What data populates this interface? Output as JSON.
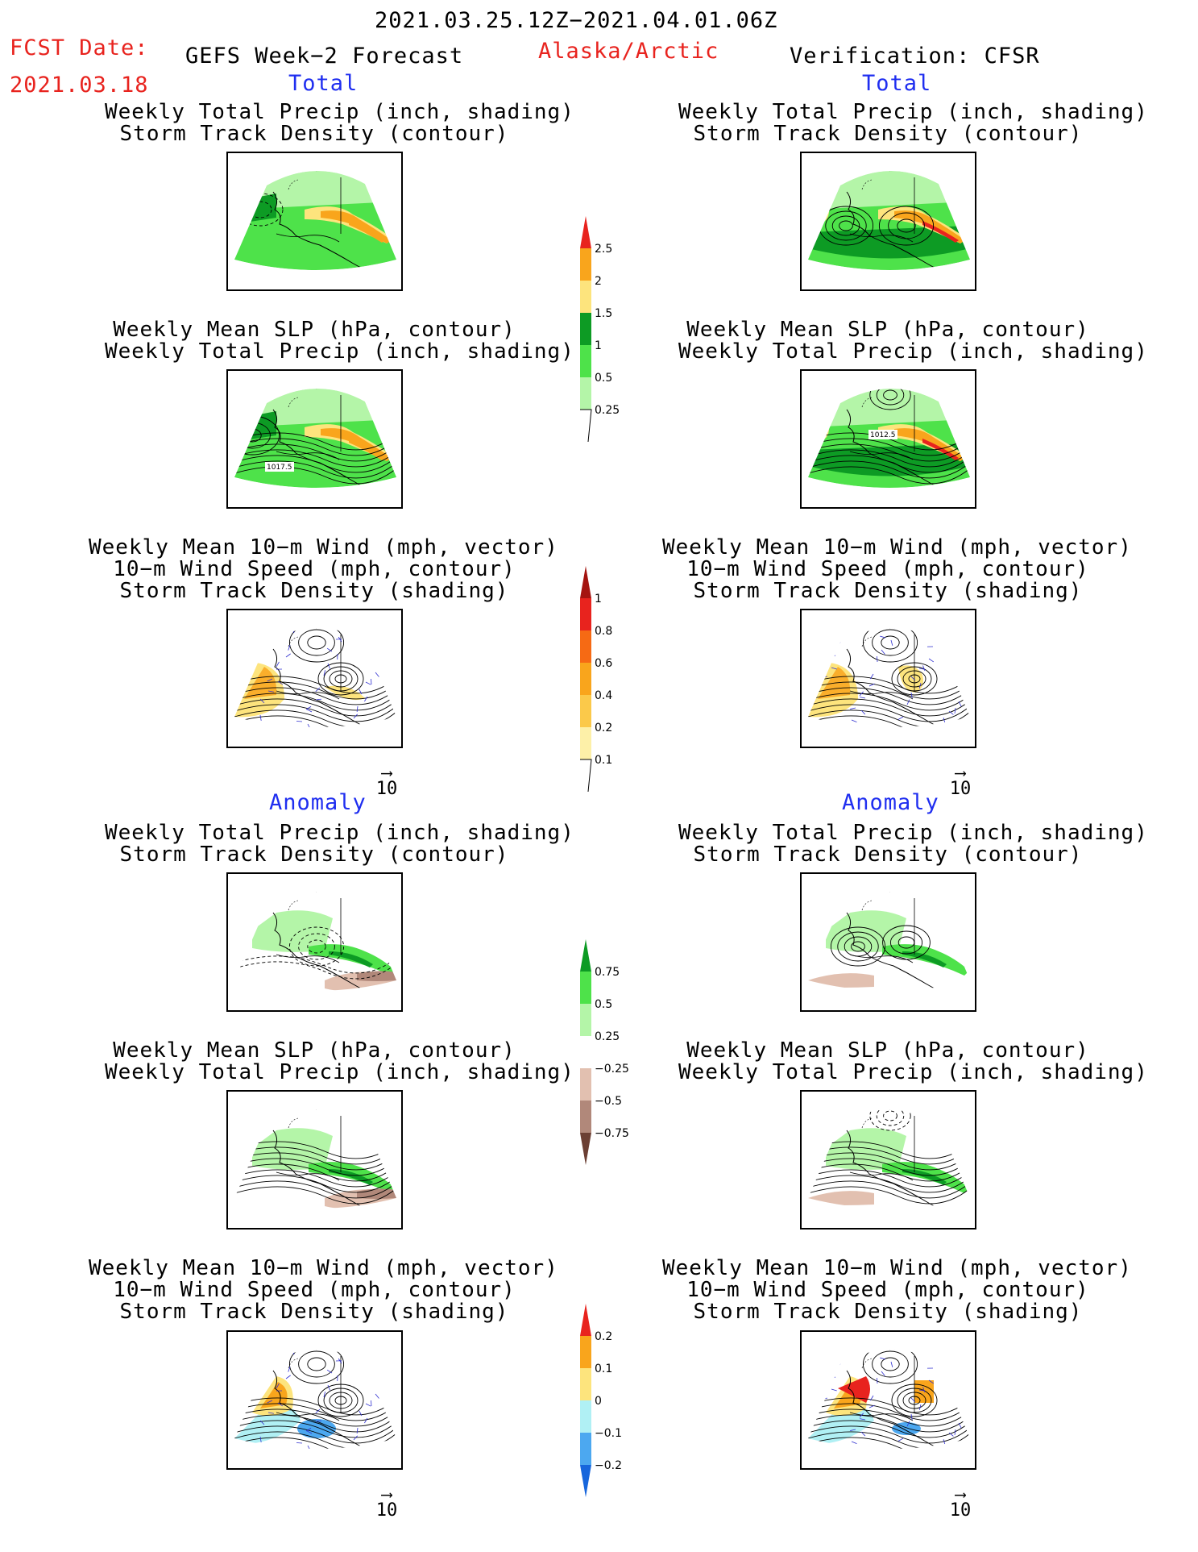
{
  "header": {
    "date_range": "2021.03.25.12Z−2021.04.01.06Z",
    "fcst_label": "FCST Date:",
    "fcst_date": "2021.03.18",
    "forecast_title": "GEFS Week−2 Forecast",
    "region": "Alaska/Arctic",
    "verification": "Verification: CFSR"
  },
  "sections": {
    "total": "Total",
    "anomaly": "Anomaly"
  },
  "panel_titles": {
    "precip_storm": [
      "Weekly Total Precip (inch, shading)",
      "Storm Track Density (contour)"
    ],
    "slp_precip": [
      "Weekly Mean SLP (hPa, contour)",
      "Weekly Total Precip (inch, shading)"
    ],
    "wind_storm": [
      "Weekly Mean 10−m Wind (mph, vector)",
      "10−m Wind Speed (mph, contour)",
      "Storm Track Density (shading)"
    ]
  },
  "contour_labels": {
    "fcst_slp": "1017.5",
    "verif_slp": "1012.5"
  },
  "vector_ref": "10",
  "colors": {
    "light_green": "#b4f5a8",
    "green": "#4ee24a",
    "dark_green": "#0d9b24",
    "yellow": "#fde47d",
    "orange": "#f9a51c",
    "red": "#e8231e",
    "dark_red": "#a41410",
    "tan": "#e2c0b0",
    "brown": "#b1887a",
    "dark_brown": "#6b3f33",
    "lt_blue": "#b0f0f4",
    "mid_blue": "#4ca8f0",
    "blue": "#1766dc",
    "vector": "#3030d0",
    "red_text": "#e8231e",
    "blue_text": "#1f2ef0"
  },
  "chart_data": [
    {
      "type": "heatmap",
      "title": "Weekly Total Precip (inch, shading) / Storm Track Density (contour)",
      "column": "GEFS Week−2 Forecast",
      "section": "Total"
    },
    {
      "type": "heatmap",
      "title": "Weekly Total Precip (inch, shading) / Storm Track Density (contour)",
      "column": "Verification: CFSR",
      "section": "Total"
    },
    {
      "type": "heatmap",
      "title": "Weekly Mean SLP (hPa, contour) / Weekly Total Precip (inch, shading)",
      "column": "GEFS Week−2 Forecast",
      "section": "Total",
      "contour_label": "1017.5"
    },
    {
      "type": "heatmap",
      "title": "Weekly Mean SLP (hPa, contour) / Weekly Total Precip (inch, shading)",
      "column": "Verification: CFSR",
      "section": "Total",
      "contour_label": "1012.5"
    },
    {
      "type": "heatmap",
      "title": "Weekly Mean 10−m Wind (mph, vector) / 10−m Wind Speed (mph, contour) / Storm Track Density (shading)",
      "column": "GEFS Week−2 Forecast",
      "section": "Total"
    },
    {
      "type": "heatmap",
      "title": "Weekly Mean 10−m Wind (mph, vector) / 10−m Wind Speed (mph, contour) / Storm Track Density (shading)",
      "column": "Verification: CFSR",
      "section": "Total"
    },
    {
      "type": "heatmap",
      "title": "Weekly Total Precip (inch, shading) / Storm Track Density (contour)",
      "column": "GEFS Week−2 Forecast",
      "section": "Anomaly"
    },
    {
      "type": "heatmap",
      "title": "Weekly Total Precip (inch, shading) / Storm Track Density (contour)",
      "column": "Verification: CFSR",
      "section": "Anomaly"
    },
    {
      "type": "heatmap",
      "title": "Weekly Mean SLP (hPa, contour) / Weekly Total Precip (inch, shading)",
      "column": "GEFS Week−2 Forecast",
      "section": "Anomaly"
    },
    {
      "type": "heatmap",
      "title": "Weekly Mean SLP (hPa, contour) / Weekly Total Precip (inch, shading)",
      "column": "Verification: CFSR",
      "section": "Anomaly"
    },
    {
      "type": "heatmap",
      "title": "Weekly Mean 10−m Wind (mph, vector) / 10−m Wind Speed (mph, contour) / Storm Track Density (shading)",
      "column": "GEFS Week−2 Forecast",
      "section": "Anomaly"
    },
    {
      "type": "heatmap",
      "title": "Weekly Mean 10−m Wind (mph, vector) / 10−m Wind Speed (mph, contour) / Storm Track Density (shading)",
      "column": "Verification: CFSR",
      "section": "Anomaly"
    }
  ],
  "colorbars": {
    "total_precip": {
      "ticks": [
        "2.5",
        "2",
        "1.5",
        "1",
        "0.5",
        "0.25"
      ],
      "colors": [
        "#e8231e",
        "#f9a51c",
        "#fde47d",
        "#0d9b24",
        "#4ee24a",
        "#b4f5a8"
      ]
    },
    "total_storm": {
      "ticks": [
        "1",
        "0.8",
        "0.6",
        "0.4",
        "0.2",
        "0.1"
      ],
      "colors": [
        "#a41410",
        "#e8231e",
        "#f66a14",
        "#f9a51c",
        "#fbc94a",
        "#fdf0a8"
      ]
    },
    "anom_precip": {
      "ticks": [
        "0.75",
        "0.5",
        "0.25",
        "−0.25",
        "−0.5",
        "−0.75"
      ],
      "colors": [
        "#0d9b24",
        "#4ee24a",
        "#b4f5a8",
        "#ffffff",
        "#e2c0b0",
        "#b1887a",
        "#6b3f33"
      ]
    },
    "anom_storm": {
      "ticks": [
        "0.2",
        "0.1",
        "0",
        "−0.1",
        "−0.2"
      ],
      "colors": [
        "#e8231e",
        "#f9a51c",
        "#fde47d",
        "#b0f0f4",
        "#4ca8f0",
        "#1766dc"
      ]
    }
  }
}
